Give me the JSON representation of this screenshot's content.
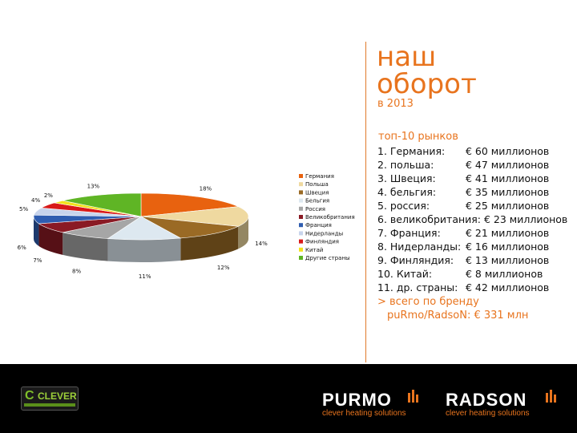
{
  "title_line1": "наш",
  "title_line2": "оборот",
  "subtitle": "в 2013",
  "markets_heading": "топ-10 рынков",
  "markets": [
    {
      "name": "1. Германия:",
      "value": "€ 60 миллионов"
    },
    {
      "name": "2. польша:",
      "value": "€ 47 миллионов"
    },
    {
      "name": "3. Швеция:",
      "value": "€ 41 миллионов"
    },
    {
      "name": "4. бельгия:",
      "value": "€ 35 миллионов"
    },
    {
      "name": "5. россия:",
      "value": "€ 25 миллионов"
    },
    {
      "name": "6. великобритания:",
      "value": "€ 23 миллионов"
    },
    {
      "name": "7. Франция:",
      "value": "€ 21 миллионов"
    },
    {
      "name": "8. Нидерланды:",
      "value": "€ 16 миллионов"
    },
    {
      "name": "9. Финляндия:",
      "value": "€ 13 миллионов"
    },
    {
      "name": "10. Китай:",
      "value": "€   8 миллионов"
    },
    {
      "name": "11. др. страны:",
      "value": "€ 42 миллионов"
    }
  ],
  "total_line1": ">  всего по бренду",
  "total_line2": "puRmo/RadsoN: € 331 млн",
  "footer": {
    "clever_logo": "CLEVER",
    "purmo_name": "PURMO",
    "purmo_tag": "clever heating solutions",
    "radson_name": "RADSON",
    "radson_tag": "clever heating solutions"
  },
  "chart_data": {
    "type": "pie",
    "style": "3d",
    "categories": [
      "Германия",
      "Польша",
      "Швеция",
      "Бельгия",
      "Россия",
      "Великобритания",
      "Франция",
      "Нидерланды",
      "Финляндия",
      "Китай",
      "Другие страны"
    ],
    "values": [
      18,
      14,
      12,
      11,
      8,
      7,
      6,
      5,
      4,
      2,
      13
    ],
    "labels": [
      "18%",
      "14%",
      "12%",
      "11%",
      "8%",
      "7%",
      "6%",
      "5%",
      "4%",
      "2%",
      "13%"
    ],
    "colors": [
      "#e8620f",
      "#efd9a0",
      "#9a6a25",
      "#dde8f0",
      "#a6a6a6",
      "#8a1a24",
      "#2f5db0",
      "#c8d4ec",
      "#d81919",
      "#f2e21c",
      "#5fb525"
    ],
    "legend_position": "right"
  }
}
